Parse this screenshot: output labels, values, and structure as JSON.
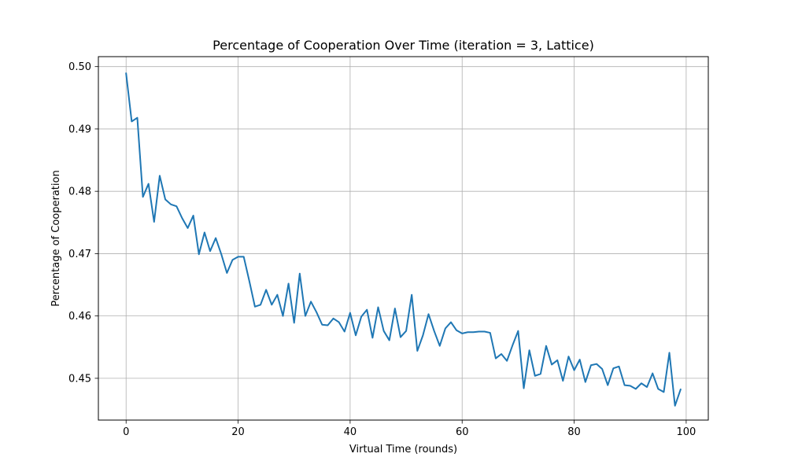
{
  "chart_data": {
    "type": "line",
    "title": "Percentage of Cooperation Over Time (iteration = 3, Lattice)",
    "xlabel": "Virtual Time (rounds)",
    "ylabel": "Percentage of Cooperation",
    "xlim": [
      -4.95,
      103.95
    ],
    "ylim": [
      0.4433,
      0.5016
    ],
    "grid": true,
    "x_ticks": [
      0,
      20,
      40,
      60,
      80,
      100
    ],
    "x_tick_labels": [
      "0",
      "20",
      "40",
      "60",
      "80",
      "100"
    ],
    "y_ticks": [
      0.45,
      0.46,
      0.47,
      0.48,
      0.49,
      0.5
    ],
    "y_tick_labels": [
      "0.45",
      "0.46",
      "0.47",
      "0.48",
      "0.49",
      "0.50"
    ],
    "series": [
      {
        "color": "#1f77b4",
        "x": [
          0,
          1,
          2,
          3,
          4,
          5,
          6,
          7,
          8,
          9,
          10,
          11,
          12,
          13,
          14,
          15,
          16,
          17,
          18,
          19,
          20,
          21,
          22,
          23,
          24,
          25,
          26,
          27,
          28,
          29,
          30,
          31,
          32,
          33,
          34,
          35,
          36,
          37,
          38,
          39,
          40,
          41,
          42,
          43,
          44,
          45,
          46,
          47,
          48,
          49,
          50,
          51,
          52,
          53,
          54,
          55,
          56,
          57,
          58,
          59,
          60,
          61,
          62,
          63,
          64,
          65,
          66,
          67,
          68,
          69,
          70,
          71,
          72,
          73,
          74,
          75,
          76,
          77,
          78,
          79,
          80,
          81,
          82,
          83,
          84,
          85,
          86,
          87,
          88,
          89,
          90,
          91,
          92,
          93,
          94,
          95,
          96,
          97,
          98,
          99
        ],
        "y": [
          0.4989,
          0.4912,
          0.4918,
          0.4791,
          0.4812,
          0.4751,
          0.4825,
          0.4787,
          0.4779,
          0.4776,
          0.4757,
          0.4741,
          0.4761,
          0.4699,
          0.4734,
          0.4704,
          0.4725,
          0.4699,
          0.4669,
          0.469,
          0.4695,
          0.4695,
          0.4656,
          0.4615,
          0.4618,
          0.4642,
          0.4618,
          0.4634,
          0.46,
          0.4652,
          0.4589,
          0.4668,
          0.46,
          0.4623,
          0.4606,
          0.4586,
          0.4585,
          0.4596,
          0.459,
          0.4575,
          0.4605,
          0.4569,
          0.4599,
          0.461,
          0.4565,
          0.4614,
          0.4576,
          0.4561,
          0.4612,
          0.4566,
          0.4576,
          0.4634,
          0.4544,
          0.4569,
          0.4603,
          0.4576,
          0.4552,
          0.458,
          0.459,
          0.4577,
          0.4572,
          0.4574,
          0.4574,
          0.4575,
          0.4575,
          0.4573,
          0.4532,
          0.4539,
          0.4528,
          0.4553,
          0.4576,
          0.4484,
          0.4545,
          0.4504,
          0.4507,
          0.4552,
          0.4522,
          0.4529,
          0.4496,
          0.4535,
          0.4513,
          0.453,
          0.4494,
          0.4521,
          0.4523,
          0.4515,
          0.4489,
          0.4516,
          0.4519,
          0.4489,
          0.4488,
          0.4483,
          0.4492,
          0.4486,
          0.4508,
          0.4483,
          0.4478,
          0.4541,
          0.4456,
          0.4482
        ]
      }
    ]
  }
}
